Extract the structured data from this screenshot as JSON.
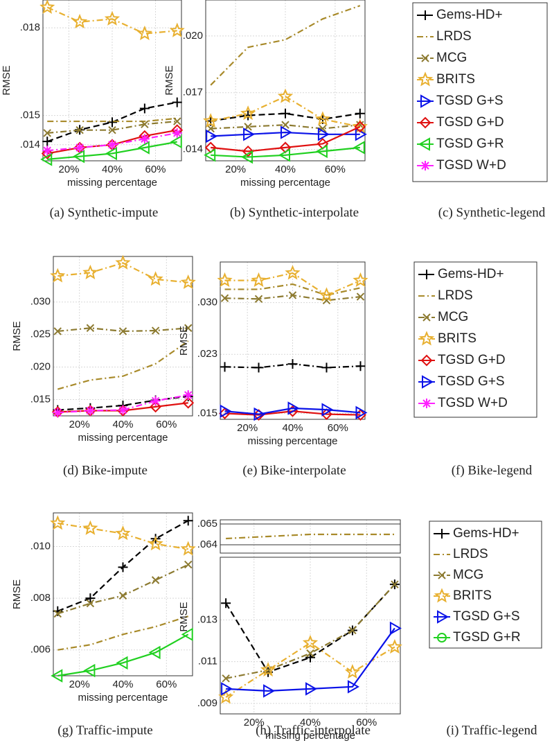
{
  "chart_data": [
    {
      "type": "line",
      "caption": "(a) Synthetic-impute",
      "xlabel": "missing percentage",
      "ylabel": "RMSE",
      "x": [
        10,
        25,
        40,
        55,
        70
      ],
      "xlim": [
        8,
        72
      ],
      "xticks": [
        {
          "value": 20,
          "label": "20%"
        },
        {
          "value": 40,
          "label": "40%"
        },
        {
          "value": 60,
          "label": "60%"
        }
      ],
      "ylim": [
        0.01345,
        0.01895
      ],
      "yticks": [
        {
          "value": 0.014,
          "label": ".014"
        },
        {
          "value": 0.015,
          "label": ".015"
        },
        {
          "value": 0.018,
          "label": ".018"
        }
      ],
      "grid": true,
      "series": [
        {
          "color": "#000000",
          "marker": "plus",
          "dash": "dash",
          "values": [
            0.01411,
            0.01451,
            0.01477,
            0.01524,
            0.01545
          ]
        },
        {
          "color": "#a88a2a",
          "marker": "none",
          "dash": "dashdot",
          "values": [
            0.0148,
            0.0148,
            0.0148,
            0.0148,
            0.0149
          ]
        },
        {
          "color": "#8c7a30",
          "marker": "cross",
          "dash": "dashdot",
          "values": [
            0.0144,
            0.0145,
            0.0145,
            0.0147,
            0.0148
          ]
        },
        {
          "color": "#e8b030",
          "marker": "star",
          "dash": "dashdot",
          "values": [
            0.0187,
            0.0182,
            0.0183,
            0.0178,
            0.0179
          ]
        },
        {
          "color": "#e01010",
          "marker": "diamond",
          "dash": "solid",
          "values": [
            0.0137,
            0.0139,
            0.014,
            0.0143,
            0.0145
          ]
        },
        {
          "color": "#20d020",
          "marker": "tri-left",
          "dash": "solid",
          "values": [
            0.0135,
            0.0136,
            0.0137,
            0.0139,
            0.0141
          ]
        },
        {
          "color": "#ff20ff",
          "marker": "asterisk",
          "dash": "dashdot",
          "values": [
            0.0138,
            0.0139,
            0.014,
            0.0142,
            0.0144
          ]
        }
      ]
    },
    {
      "type": "line",
      "caption": "(b) Synthetic-interpolate",
      "xlabel": "missing percentage",
      "ylabel": "RMSE",
      "x": [
        10,
        25,
        40,
        55,
        70
      ],
      "xlim": [
        8,
        72
      ],
      "xticks": [
        {
          "value": 20,
          "label": "20%"
        },
        {
          "value": 40,
          "label": "40%"
        },
        {
          "value": 60,
          "label": "60%"
        }
      ],
      "ylim": [
        0.0134,
        0.0219
      ],
      "yticks": [
        {
          "value": 0.014,
          "label": ".014"
        },
        {
          "value": 0.017,
          "label": ".017"
        },
        {
          "value": 0.02,
          "label": ".020"
        }
      ],
      "grid": true,
      "series": [
        {
          "color": "#000000",
          "marker": "plus",
          "dash": "dash",
          "values": [
            0.0155,
            0.0158,
            0.0159,
            0.0156,
            0.0159
          ]
        },
        {
          "color": "#a88a2a",
          "marker": "none",
          "dash": "dashdot",
          "values": [
            0.0174,
            0.0194,
            0.0198,
            0.0209,
            0.0216
          ]
        },
        {
          "color": "#8c7a30",
          "marker": "cross",
          "dash": "dashdot",
          "values": [
            0.0151,
            0.0152,
            0.0153,
            0.0151,
            0.0153
          ]
        },
        {
          "color": "#e8b030",
          "marker": "star",
          "dash": "dashdot",
          "values": [
            0.0155,
            0.0159,
            0.0168,
            0.0156,
            0.0152
          ]
        },
        {
          "color": "#0a12e8",
          "marker": "tri-right",
          "dash": "solid",
          "values": [
            0.0147,
            0.0148,
            0.0149,
            0.0148,
            0.0148
          ]
        },
        {
          "color": "#e01010",
          "marker": "diamond",
          "dash": "solid",
          "values": [
            0.0141,
            0.0139,
            0.0141,
            0.0143,
            0.0152
          ]
        },
        {
          "color": "#20d020",
          "marker": "tri-left",
          "dash": "solid",
          "values": [
            0.0137,
            0.0136,
            0.0137,
            0.0139,
            0.0141
          ]
        }
      ]
    },
    {
      "type": "line",
      "caption": "(d) Bike-impute",
      "xlabel": "missing percentage",
      "ylabel": "RMSE",
      "x": [
        10,
        25,
        40,
        55,
        70
      ],
      "xlim": [
        8,
        72
      ],
      "xticks": [
        {
          "value": 20,
          "label": "20%"
        },
        {
          "value": 40,
          "label": "40%"
        },
        {
          "value": 60,
          "label": "60%"
        }
      ],
      "ylim": [
        0.0125,
        0.037
      ],
      "yticks": [
        {
          "value": 0.015,
          "label": ".015"
        },
        {
          "value": 0.02,
          "label": ".020"
        },
        {
          "value": 0.025,
          "label": ".025"
        },
        {
          "value": 0.03,
          "label": ".030"
        }
      ],
      "grid": true,
      "series": [
        {
          "color": "#000000",
          "marker": "plus",
          "dash": "dash",
          "values": [
            0.0134,
            0.0137,
            0.0141,
            0.0149,
            0.0155
          ]
        },
        {
          "color": "#a88a2a",
          "marker": "none",
          "dash": "dashdot",
          "values": [
            0.0166,
            0.018,
            0.0186,
            0.0205,
            0.024
          ]
        },
        {
          "color": "#8c7a30",
          "marker": "cross",
          "dash": "dashdot",
          "values": [
            0.0255,
            0.026,
            0.0255,
            0.0256,
            0.026
          ]
        },
        {
          "color": "#e8b030",
          "marker": "star",
          "dash": "dashdot",
          "values": [
            0.034,
            0.0345,
            0.036,
            0.0335,
            0.033
          ]
        },
        {
          "color": "#e01010",
          "marker": "diamond",
          "dash": "solid",
          "values": [
            0.0131,
            0.0133,
            0.0133,
            0.0139,
            0.0145
          ]
        },
        {
          "color": "#ff20ff",
          "marker": "asterisk",
          "dash": "dashdot",
          "values": [
            0.013,
            0.0133,
            0.0134,
            0.0148,
            0.0157
          ]
        }
      ]
    },
    {
      "type": "line",
      "caption": "(e) Bike-interpolate",
      "xlabel": "missing percentage",
      "ylabel": "RMSE",
      "x": [
        10,
        25,
        40,
        55,
        70
      ],
      "xlim": [
        8,
        72
      ],
      "xticks": [
        {
          "value": 20,
          "label": "20%"
        },
        {
          "value": 40,
          "label": "40%"
        },
        {
          "value": 60,
          "label": "60%"
        }
      ],
      "ylim": [
        0.0142,
        0.0355
      ],
      "yticks": [
        {
          "value": 0.015,
          "label": ".015"
        },
        {
          "value": 0.023,
          "label": ".023"
        },
        {
          "value": 0.03,
          "label": ".030"
        }
      ],
      "grid": true,
      "series": [
        {
          "color": "#000000",
          "marker": "plus",
          "dash": "dashdot",
          "values": [
            0.0213,
            0.0212,
            0.0217,
            0.0212,
            0.0214
          ]
        },
        {
          "color": "#a88a2a",
          "marker": "none",
          "dash": "dashdot",
          "values": [
            0.0318,
            0.0318,
            0.0325,
            0.031,
            0.032
          ]
        },
        {
          "color": "#8c7a30",
          "marker": "cross",
          "dash": "dashdot",
          "values": [
            0.0306,
            0.0305,
            0.031,
            0.0303,
            0.0308
          ]
        },
        {
          "color": "#e8b030",
          "marker": "star",
          "dash": "dashdot",
          "values": [
            0.033,
            0.033,
            0.034,
            0.031,
            0.033
          ]
        },
        {
          "color": "#e01010",
          "marker": "diamond",
          "dash": "solid",
          "values": [
            0.015,
            0.0148,
            0.0153,
            0.0149,
            0.0148
          ]
        },
        {
          "color": "#0a12e8",
          "marker": "tri-right",
          "dash": "solid",
          "values": [
            0.0153,
            0.0149,
            0.0157,
            0.0155,
            0.0151
          ]
        }
      ]
    },
    {
      "type": "line",
      "caption": "(g) Traffic-impute",
      "xlabel": "missing percentage",
      "ylabel": "RMSE",
      "x": [
        10,
        25,
        40,
        55,
        70
      ],
      "xlim": [
        8,
        72
      ],
      "xticks": [
        {
          "value": 20,
          "label": "20%"
        },
        {
          "value": 40,
          "label": "40%"
        },
        {
          "value": 60,
          "label": "60%"
        }
      ],
      "ylim": [
        0.005,
        0.0113
      ],
      "yticks": [
        {
          "value": 0.006,
          "label": ".006"
        },
        {
          "value": 0.008,
          "label": ".008"
        },
        {
          "value": 0.01,
          "label": ".010"
        }
      ],
      "grid": true,
      "series": [
        {
          "color": "#000000",
          "marker": "plus",
          "dash": "dash",
          "values": [
            0.0075,
            0.008,
            0.0092,
            0.0103,
            0.011
          ]
        },
        {
          "color": "#a88a2a",
          "marker": "none",
          "dash": "dashdot",
          "values": [
            0.006,
            0.0062,
            0.0066,
            0.0069,
            0.0073
          ]
        },
        {
          "color": "#8c7a30",
          "marker": "cross",
          "dash": "dashdot",
          "values": [
            0.0074,
            0.0078,
            0.0081,
            0.0087,
            0.0093
          ]
        },
        {
          "color": "#e8b030",
          "marker": "star",
          "dash": "dashdot",
          "values": [
            0.0109,
            0.0107,
            0.0105,
            0.0101,
            0.0099
          ]
        },
        {
          "color": "#20d020",
          "marker": "tri-left",
          "dash": "solid",
          "values": [
            0.005,
            0.0052,
            0.0055,
            0.0059,
            0.0066
          ]
        }
      ]
    },
    {
      "type": "line",
      "caption": "(h) Traffic-interpolate",
      "xlabel": "missing percentage",
      "ylabel": "RMSE",
      "x": [
        10,
        25,
        40,
        55,
        70
      ],
      "xlim": [
        8,
        72
      ],
      "xticks": [
        {
          "value": 20,
          "label": "20%"
        },
        {
          "value": 40,
          "label": "40%"
        },
        {
          "value": 60,
          "label": "60%"
        }
      ],
      "ylim": [
        0.0085,
        0.016
      ],
      "yticks": [
        {
          "value": 0.009,
          "label": ".009"
        },
        {
          "value": 0.011,
          "label": ".011"
        },
        {
          "value": 0.013,
          "label": ".013"
        }
      ],
      "y2lim": [
        0.0636,
        0.0652
      ],
      "y2ticks": [
        {
          "value": 0.064,
          "label": ".064"
        },
        {
          "value": 0.065,
          "label": ".065"
        }
      ],
      "grid": true,
      "series": [
        {
          "color": "#000000",
          "marker": "plus",
          "dash": "dash",
          "values": [
            0.0138,
            0.0105,
            0.0112,
            0.0125,
            0.0147
          ]
        },
        {
          "color": "#a88a2a",
          "marker": "none",
          "dash": "dashdot",
          "axis": "y2",
          "values": [
            0.0643,
            0.0644,
            0.0645,
            0.0645,
            0.0645
          ]
        },
        {
          "color": "#8c7a30",
          "marker": "cross",
          "dash": "dashdot",
          "values": [
            0.0102,
            0.0106,
            0.0114,
            0.0125,
            0.0147
          ]
        },
        {
          "color": "#e8b030",
          "marker": "star",
          "dash": "dashdot",
          "values": [
            0.0093,
            0.0106,
            0.0119,
            0.0105,
            0.0117
          ]
        },
        {
          "color": "#0a12e8",
          "marker": "tri-right",
          "dash": "solid",
          "values": [
            0.0097,
            0.0096,
            0.0097,
            0.0098,
            0.0126
          ]
        }
      ]
    }
  ],
  "legends": [
    {
      "caption": "(c) Synthetic-legend",
      "entries": [
        {
          "name": "Gems-HD+",
          "color": "#000000",
          "marker": "plus",
          "dash": "dash"
        },
        {
          "name": "LRDS",
          "color": "#a88a2a",
          "marker": "none",
          "dash": "dashdot"
        },
        {
          "name": "MCG",
          "color": "#8c7a30",
          "marker": "cross",
          "dash": "dashdot"
        },
        {
          "name": "BRITS",
          "color": "#e8b030",
          "marker": "star",
          "dash": "dashdot"
        },
        {
          "name": "TGSD G+S",
          "color": "#0a12e8",
          "marker": "tri-right",
          "dash": "solid"
        },
        {
          "name": "TGSD G+D",
          "color": "#e01010",
          "marker": "diamond",
          "dash": "solid"
        },
        {
          "name": "TGSD G+R",
          "color": "#20d020",
          "marker": "tri-left",
          "dash": "solid"
        },
        {
          "name": "TGSD W+D",
          "color": "#ff20ff",
          "marker": "asterisk",
          "dash": "dashdot"
        }
      ]
    },
    {
      "caption": "(f) Bike-legend",
      "entries": [
        {
          "name": "Gems-HD+",
          "color": "#000000",
          "marker": "plus",
          "dash": "dash"
        },
        {
          "name": "LRDS",
          "color": "#a88a2a",
          "marker": "none",
          "dash": "dashdot"
        },
        {
          "name": "MCG",
          "color": "#8c7a30",
          "marker": "cross",
          "dash": "dashdot"
        },
        {
          "name": "BRITS",
          "color": "#e8b030",
          "marker": "star",
          "dash": "dashdot"
        },
        {
          "name": "TGSD G+D",
          "color": "#e01010",
          "marker": "diamond",
          "dash": "solid"
        },
        {
          "name": "TGSD G+S",
          "color": "#0a12e8",
          "marker": "tri-right",
          "dash": "solid"
        },
        {
          "name": "TGSD W+D",
          "color": "#ff20ff",
          "marker": "asterisk",
          "dash": "dashdot"
        }
      ]
    },
    {
      "caption": "(i) Traffic-legend",
      "entries": [
        {
          "name": "Gems-HD+",
          "color": "#000000",
          "marker": "plus",
          "dash": "dash"
        },
        {
          "name": "LRDS",
          "color": "#a88a2a",
          "marker": "none",
          "dash": "dashdot"
        },
        {
          "name": "MCG",
          "color": "#8c7a30",
          "marker": "cross",
          "dash": "dashdot"
        },
        {
          "name": "BRITS",
          "color": "#e8b030",
          "marker": "star",
          "dash": "dashdot"
        },
        {
          "name": "TGSD G+S",
          "color": "#0a12e8",
          "marker": "tri-right",
          "dash": "solid"
        },
        {
          "name": "TGSD G+R",
          "color": "#20d020",
          "marker": "circle",
          "dash": "solid"
        }
      ]
    }
  ]
}
